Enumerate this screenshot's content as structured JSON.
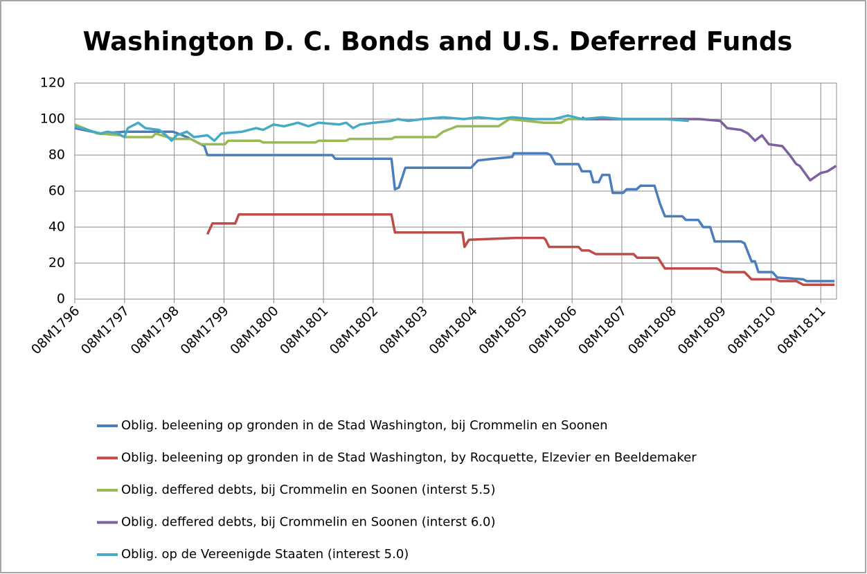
{
  "chart_data": {
    "type": "line",
    "title": "Washington D. C. Bonds and U.S. Deferred Funds",
    "xlim": [
      1796.583,
      1811.9
    ],
    "xticks": [
      {
        "value": 1796.583,
        "label": "08M1796"
      },
      {
        "value": 1797.583,
        "label": "08M1797"
      },
      {
        "value": 1798.583,
        "label": "08M1798"
      },
      {
        "value": 1799.583,
        "label": "08M1799"
      },
      {
        "value": 1800.583,
        "label": "08M1800"
      },
      {
        "value": 1801.583,
        "label": "08M1801"
      },
      {
        "value": 1802.583,
        "label": "08M1802"
      },
      {
        "value": 1803.583,
        "label": "08M1803"
      },
      {
        "value": 1804.583,
        "label": "08M1804"
      },
      {
        "value": 1805.583,
        "label": "08M1805"
      },
      {
        "value": 1806.583,
        "label": "08M1806"
      },
      {
        "value": 1807.583,
        "label": "08M1807"
      },
      {
        "value": 1808.583,
        "label": "08M1808"
      },
      {
        "value": 1809.583,
        "label": "08M1809"
      },
      {
        "value": 1810.583,
        "label": "08M1810"
      },
      {
        "value": 1811.583,
        "label": "08M1811"
      }
    ],
    "ylim": [
      0,
      120
    ],
    "yticks": [
      0,
      20,
      40,
      60,
      80,
      100,
      120
    ],
    "grid": true,
    "legend": "bottom",
    "series": [
      {
        "name": "Oblig. beleening op gronden in de Stad Washington, bij Crommelin en Soonen",
        "color": "#4a7ebb",
        "x": [
          1796.583,
          1797.1,
          1797.58,
          1798.56,
          1798.84,
          1799.05,
          1799.19,
          1799.25,
          1801.76,
          1801.82,
          1802.95,
          1803.02,
          1803.1,
          1803.23,
          1804.55,
          1804.69,
          1805.0,
          1805.38,
          1805.41,
          1806.08,
          1806.15,
          1806.25,
          1806.71,
          1806.78,
          1806.95,
          1807.01,
          1807.12,
          1807.19,
          1807.33,
          1807.4,
          1807.61,
          1807.68,
          1807.88,
          1807.96,
          1808.24,
          1808.35,
          1808.45,
          1808.8,
          1808.87,
          1809.12,
          1809.22,
          1809.36,
          1809.45,
          1809.98,
          1810.05,
          1810.19,
          1810.26,
          1810.33,
          1810.61,
          1810.71,
          1811.23,
          1811.3,
          1811.86
        ],
        "values": [
          95,
          92,
          93,
          93,
          90,
          87,
          85,
          80,
          80,
          78,
          78,
          61,
          62,
          73,
          73,
          77,
          78,
          79,
          81,
          81,
          80,
          75,
          75,
          71,
          71,
          65,
          65,
          69,
          69,
          59,
          59,
          61,
          61,
          63,
          63,
          53,
          46,
          46,
          44,
          44,
          40,
          40,
          32,
          32,
          31,
          21,
          21,
          15,
          15,
          12,
          11,
          10,
          10
        ]
      },
      {
        "name": "Oblig. beleening op gronden in de Stad Washington, by Rocquette, Elzevier en Beeldemaker",
        "color": "#be4b48",
        "x": [
          1799.25,
          1799.35,
          1799.81,
          1799.88,
          1802.95,
          1803.02,
          1804.38,
          1804.42,
          1804.51,
          1805.45,
          1806.01,
          1806.05,
          1806.12,
          1806.71,
          1806.78,
          1806.92,
          1807.06,
          1807.82,
          1807.89,
          1808.31,
          1808.45,
          1809.49,
          1809.63,
          1810.05,
          1810.19,
          1810.68,
          1810.75,
          1811.09,
          1811.23,
          1811.86
        ],
        "values": [
          36,
          42,
          42,
          47,
          47,
          37,
          37,
          29,
          33,
          34,
          34,
          33,
          29,
          29,
          27,
          27,
          25,
          25,
          23,
          23,
          17,
          17,
          15,
          15,
          11,
          11,
          10,
          10,
          8,
          8
        ]
      },
      {
        "name": "Oblig. deffered debts, bij Crommelin en Soonen (interst 5.5)",
        "color": "#98b954",
        "x": [
          1796.583,
          1797.03,
          1797.51,
          1797.58,
          1798.14,
          1798.21,
          1798.56,
          1798.91,
          1799.12,
          1799.6,
          1799.67,
          1800.3,
          1800.37,
          1801.42,
          1801.49,
          1802.04,
          1802.11,
          1802.95,
          1803.02,
          1803.85,
          1803.99,
          1804.27,
          1805.1,
          1805.32,
          1806.01,
          1806.36,
          1806.5,
          1807.61,
          1808.87
        ],
        "values": [
          97,
          92,
          91,
          90,
          90,
          92,
          89,
          89,
          86,
          86,
          88,
          88,
          87,
          87,
          88,
          88,
          89,
          89,
          90,
          90,
          93,
          96,
          96,
          100,
          98,
          98,
          100,
          100,
          100
        ]
      },
      {
        "name": "Oblig. deffered debts, bij Crommelin en Soonen (interst 6.0)",
        "color": "#7d60a0",
        "x": [
          1806.78,
          1806.85,
          1809.15,
          1809.56,
          1809.7,
          1809.98,
          1810.12,
          1810.26,
          1810.4,
          1810.54,
          1810.81,
          1810.96,
          1811.09,
          1811.16,
          1811.37,
          1811.58,
          1811.72,
          1811.89
        ],
        "values": [
          101,
          100,
          100,
          99,
          95,
          94,
          92,
          88,
          91,
          86,
          85,
          80,
          75,
          74,
          66,
          70,
          71,
          74
        ]
      },
      {
        "name": "Oblig. op de Vereenigde Staaten (interest 5.0)",
        "color": "#46aac5",
        "x": [
          1796.583,
          1796.96,
          1797.1,
          1797.24,
          1797.45,
          1797.58,
          1797.65,
          1797.86,
          1798.0,
          1798.28,
          1798.42,
          1798.53,
          1798.63,
          1798.84,
          1798.98,
          1799.25,
          1799.39,
          1799.53,
          1799.95,
          1800.23,
          1800.37,
          1800.58,
          1800.79,
          1801.07,
          1801.28,
          1801.49,
          1801.9,
          1802.04,
          1802.18,
          1802.32,
          1802.6,
          1802.95,
          1803.08,
          1803.29,
          1803.57,
          1803.99,
          1804.41,
          1804.69,
          1805.1,
          1805.38,
          1805.8,
          1806.22,
          1806.5,
          1806.78,
          1807.19,
          1807.61,
          1808.45,
          1808.93
        ],
        "values": [
          96,
          93,
          92,
          93,
          92,
          90,
          95,
          98,
          95,
          94,
          91,
          88,
          91,
          93,
          90,
          91,
          88,
          92,
          93,
          95,
          94,
          97,
          96,
          98,
          96,
          98,
          97,
          98,
          95,
          97,
          98,
          99,
          100,
          99,
          100,
          101,
          100,
          101,
          100,
          101,
          100,
          100,
          102,
          100,
          101,
          100,
          100,
          99
        ]
      }
    ]
  }
}
